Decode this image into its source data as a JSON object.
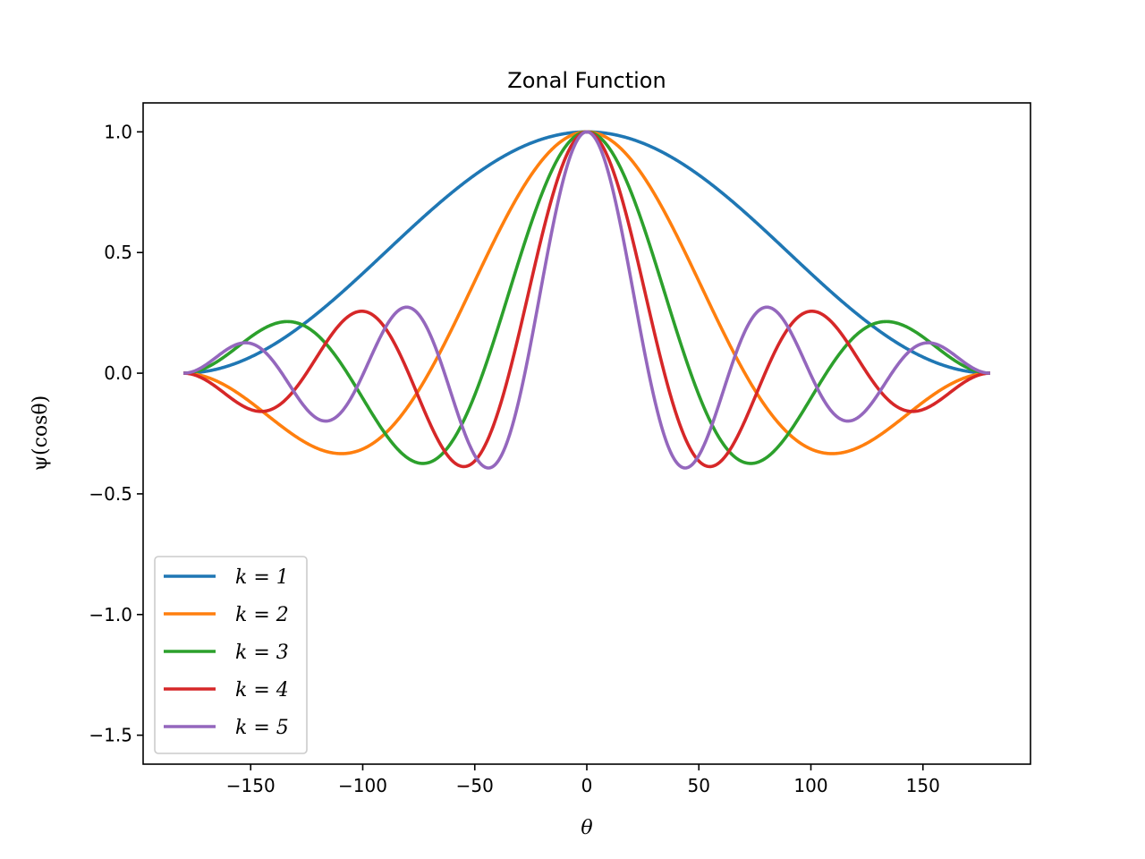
{
  "chart_data": {
    "type": "line",
    "title": "Zonal Function",
    "xlabel": "θ",
    "ylabel": "ψ(cosθ)",
    "xlim": [
      -198,
      198
    ],
    "ylim": [
      -1.62,
      1.12
    ],
    "xticks": [
      -150,
      -100,
      -50,
      0,
      50,
      100,
      150
    ],
    "xtick_labels": [
      "−150",
      "−100",
      "−50",
      "0",
      "50",
      "100",
      "150"
    ],
    "yticks": [
      1.0,
      0.5,
      0.0,
      -0.5,
      -1.0,
      -1.5
    ],
    "ytick_labels": [
      "1.0",
      "0.5",
      "0.0",
      "−0.5",
      "−1.0",
      "−1.5"
    ],
    "grid": false,
    "legend_position": "lower-left",
    "x_range": [
      -180,
      180
    ],
    "series": [
      {
        "name": "k = 1",
        "k": 1,
        "color": "#1f77b4"
      },
      {
        "name": "k = 2",
        "k": 2,
        "color": "#ff7f0e"
      },
      {
        "name": "k = 3",
        "k": 3,
        "color": "#2ca02c"
      },
      {
        "name": "k = 4",
        "k": 4,
        "color": "#d62728"
      },
      {
        "name": "k = 5",
        "k": 5,
        "color": "#9467bd"
      }
    ]
  }
}
